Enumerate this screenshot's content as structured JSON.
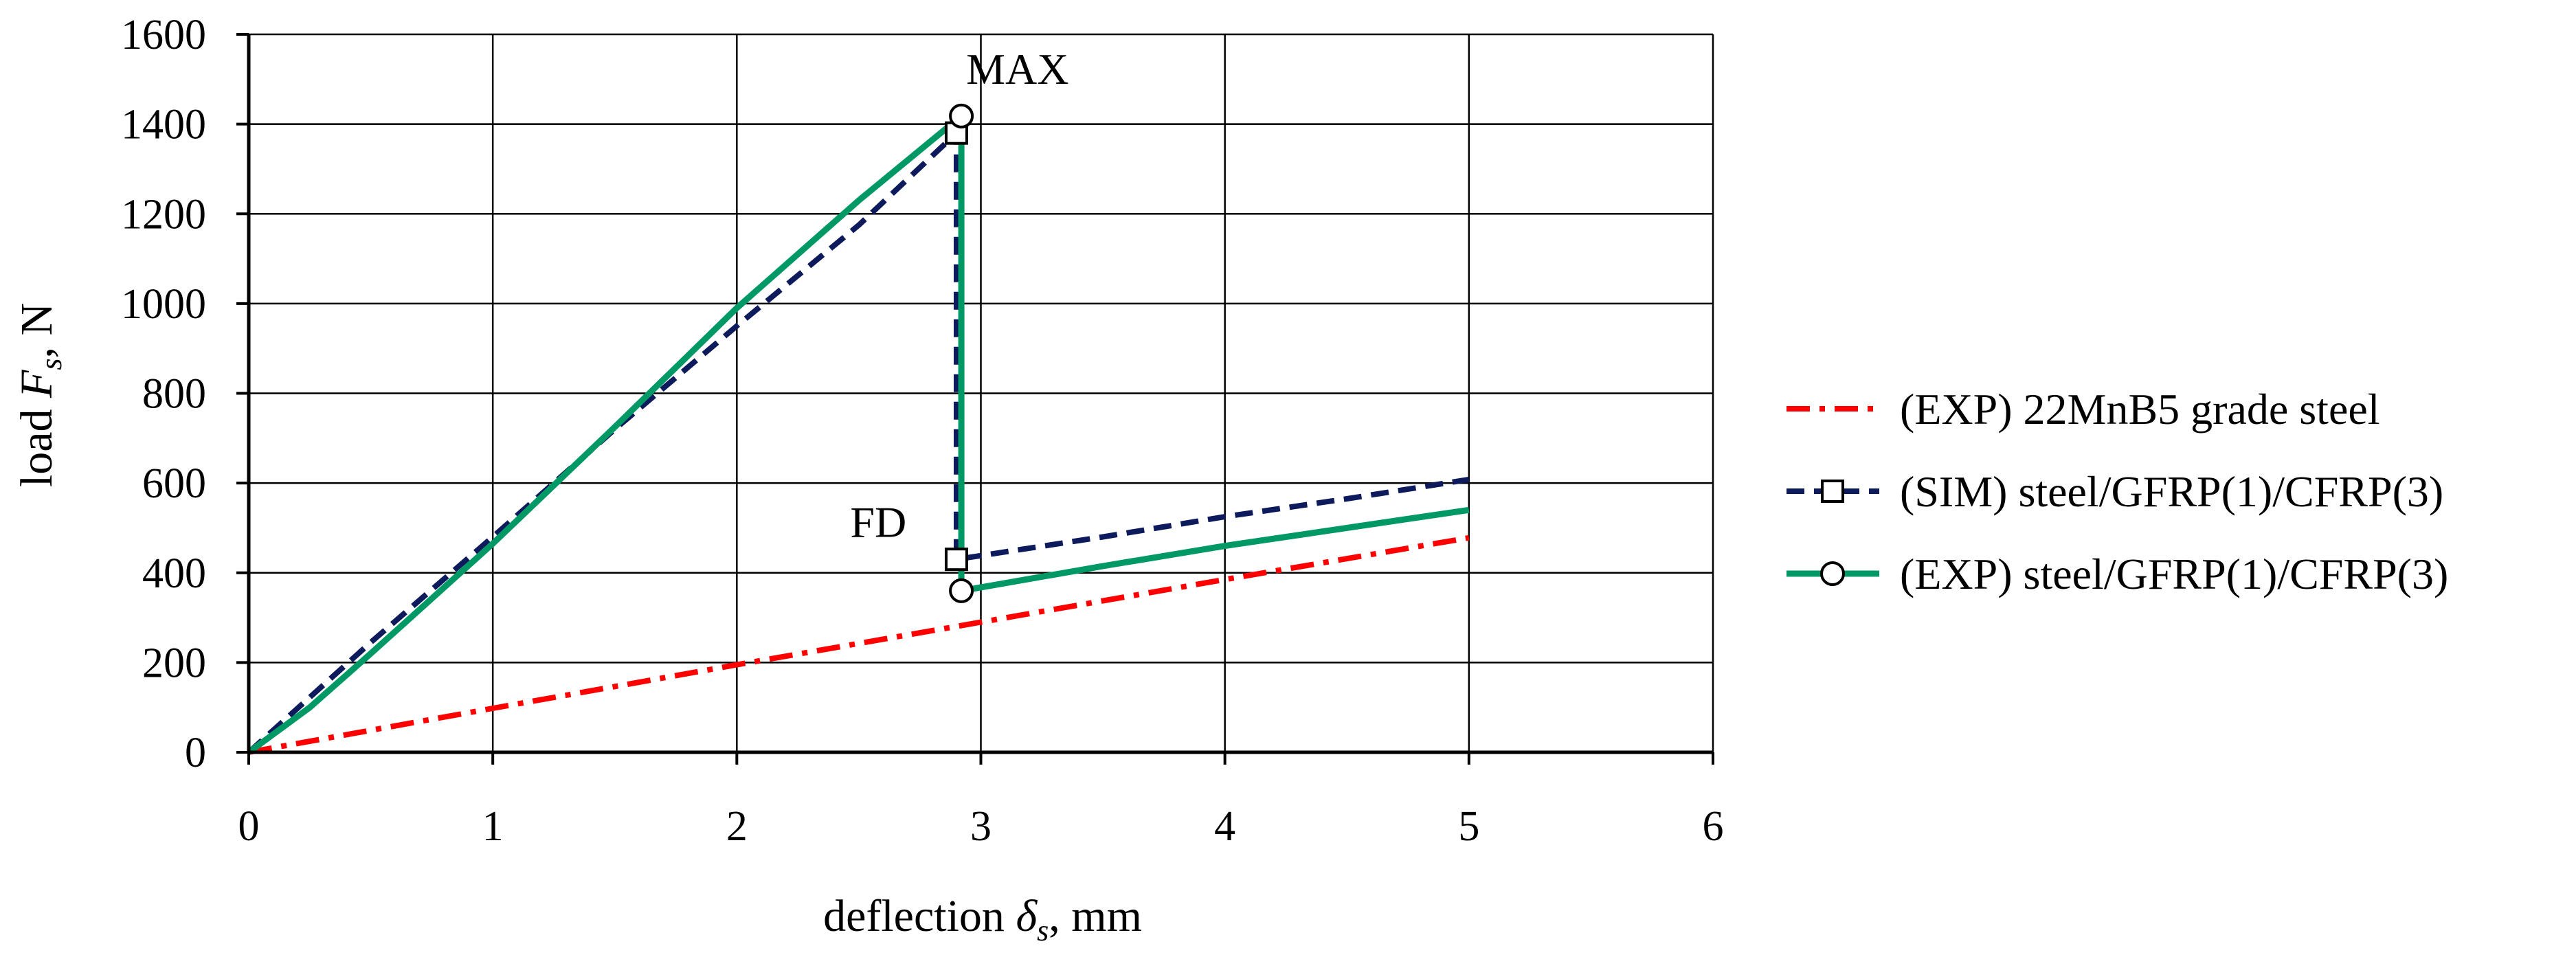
{
  "chart_data": {
    "type": "line",
    "title": "",
    "xlabel": {
      "prefix": "deflection ",
      "symbol": "δ",
      "subscript": "s",
      "suffix": ", mm"
    },
    "ylabel": {
      "prefix": "load ",
      "symbol": "F",
      "subscript": "s",
      "suffix": ", N"
    },
    "xlim": [
      0,
      6
    ],
    "ylim": [
      0,
      1600
    ],
    "xticks": [
      0,
      1,
      2,
      3,
      4,
      5,
      6
    ],
    "yticks": [
      0,
      200,
      400,
      600,
      800,
      1000,
      1200,
      1400,
      1600
    ],
    "grid": true,
    "legend_position": "right",
    "series": [
      {
        "name": "(EXP) 22MnB5 grade steel",
        "color": "#ff0000",
        "style": "dash-dot",
        "marker": "none",
        "x": [
          0,
          1,
          2,
          3,
          4,
          5
        ],
        "y": [
          0,
          98,
          195,
          290,
          385,
          478
        ]
      },
      {
        "name": "(SIM) steel/GFRP(1)/CFRP(3)",
        "color": "#0d1a5c",
        "style": "dashed",
        "marker": "square",
        "x": [
          0,
          0.5,
          1.0,
          1.5,
          2.0,
          2.5,
          2.9,
          2.9,
          3.5,
          4.0,
          4.5,
          5.0
        ],
        "y": [
          0,
          245,
          480,
          720,
          950,
          1175,
          1380,
          430,
          480,
          525,
          565,
          608
        ],
        "marked_points": [
          [
            2.9,
            1380
          ],
          [
            2.9,
            430
          ]
        ]
      },
      {
        "name": "(EXP) steel/GFRP(1)/CFRP(3)",
        "color": "#009966",
        "style": "solid",
        "marker": "circle",
        "x": [
          0,
          0.25,
          0.5,
          1.0,
          1.5,
          2.0,
          2.5,
          2.92,
          2.92,
          3.5,
          4.0,
          4.5,
          5.0
        ],
        "y": [
          0,
          100,
          220,
          465,
          725,
          990,
          1230,
          1418,
          360,
          415,
          460,
          500,
          540
        ],
        "marked_points": [
          [
            2.92,
            1418
          ],
          [
            2.92,
            360
          ]
        ]
      }
    ],
    "annotations": [
      {
        "text": "MAX",
        "x": 3.15,
        "y": 1490
      },
      {
        "text": "FD",
        "x": 2.58,
        "y": 480
      }
    ]
  }
}
